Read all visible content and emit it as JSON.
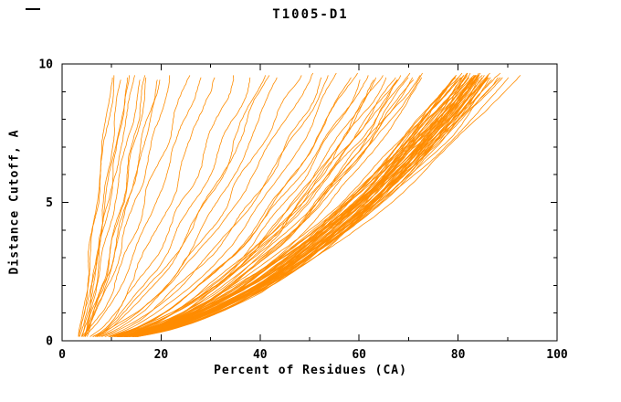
{
  "chart_data": {
    "type": "line",
    "title": "T1005-D1",
    "xlabel": "Percent of Residues (CA)",
    "ylabel": "Distance Cutoff, A",
    "xlim": [
      0,
      100
    ],
    "ylim": [
      0,
      10
    ],
    "xticks": {
      "major": [
        0,
        20,
        40,
        60,
        80,
        100
      ],
      "labels": [
        "0",
        "20",
        "40",
        "60",
        "80",
        "100"
      ],
      "minor_step": 10
    },
    "yticks": {
      "major": [
        0,
        5,
        10
      ],
      "labels": [
        "0",
        "5",
        "10"
      ],
      "minor_step": 1
    },
    "grid": false,
    "legend": "none",
    "background": "#ffffff",
    "axis_color": "#000000",
    "line_color": "#ff8c00",
    "curve_ymax": 9.7,
    "curves_format": [
      "x_start_percent",
      "x_at_top_percent",
      "shape_exponent",
      "wobble",
      "seed"
    ],
    "curves": [
      [
        3.1,
        88,
        0.52,
        1.2,
        11
      ],
      [
        3.4,
        85,
        0.5,
        1,
        12
      ],
      [
        2.9,
        83,
        0.55,
        1.4,
        13
      ],
      [
        3.6,
        86,
        0.48,
        0.9,
        14
      ],
      [
        4,
        84,
        0.53,
        1.1,
        15
      ],
      [
        3.2,
        82,
        0.57,
        1.3,
        16
      ],
      [
        3.8,
        87,
        0.51,
        1,
        17
      ],
      [
        3,
        81,
        0.49,
        1.2,
        18
      ],
      [
        3.5,
        89,
        0.54,
        1.5,
        19
      ],
      [
        4.2,
        80,
        0.52,
        1.1,
        20
      ],
      [
        3.3,
        84,
        0.46,
        1,
        21
      ],
      [
        3.7,
        82,
        0.58,
        1.2,
        22
      ],
      [
        2.8,
        86,
        0.5,
        1.3,
        23
      ],
      [
        3.9,
        79,
        0.53,
        1,
        24
      ],
      [
        3.1,
        85,
        0.47,
        1.1,
        25
      ],
      [
        3.6,
        83,
        0.55,
        1.4,
        26
      ],
      [
        3.2,
        87,
        0.52,
        0.9,
        27
      ],
      [
        4.1,
        81,
        0.49,
        1.2,
        28
      ],
      [
        3.4,
        84,
        0.56,
        1,
        29
      ],
      [
        2.9,
        82,
        0.51,
        1.3,
        30
      ],
      [
        3.8,
        88,
        0.53,
        1.1,
        31
      ],
      [
        3,
        80,
        0.48,
        1,
        32
      ],
      [
        3.5,
        86,
        0.54,
        1.2,
        33
      ],
      [
        3.3,
        83,
        0.5,
        1.4,
        34
      ],
      [
        4,
        85,
        0.57,
        1,
        35
      ],
      [
        3.1,
        78,
        0.52,
        1.1,
        36
      ],
      [
        3.7,
        84,
        0.49,
        1.3,
        37
      ],
      [
        3.2,
        90,
        0.55,
        1,
        38
      ],
      [
        3.9,
        82,
        0.51,
        1.2,
        39
      ],
      [
        2.8,
        85,
        0.53,
        1.1,
        40
      ],
      [
        3.6,
        79,
        0.47,
        1,
        41
      ],
      [
        3.3,
        87,
        0.56,
        1.3,
        42
      ],
      [
        3,
        83,
        0.52,
        1,
        43
      ],
      [
        4.2,
        86,
        0.5,
        1.2,
        44
      ],
      [
        3.4,
        81,
        0.54,
        1.1,
        45
      ],
      [
        3.8,
        84,
        0.48,
        1,
        46
      ],
      [
        3.1,
        88,
        0.53,
        1.4,
        47
      ],
      [
        3.5,
        80,
        0.51,
        1,
        48
      ],
      [
        2.9,
        84,
        0.55,
        1.2,
        49
      ],
      [
        3.7,
        86,
        0.49,
        1.1,
        50
      ],
      [
        3.2,
        82,
        0.52,
        1,
        51
      ],
      [
        4,
        87,
        0.54,
        1.3,
        52
      ],
      [
        3.3,
        83,
        0.5,
        1,
        53
      ],
      [
        3.6,
        85,
        0.56,
        1.2,
        54
      ],
      [
        3,
        81,
        0.52,
        1.1,
        55
      ],
      [
        3.9,
        84,
        0.47,
        1,
        56
      ],
      [
        3.4,
        89,
        0.53,
        1.2,
        57
      ],
      [
        3.1,
        82,
        0.51,
        1.4,
        58
      ],
      [
        3.8,
        85,
        0.55,
        1,
        59
      ],
      [
        2.9,
        83,
        0.49,
        1.1,
        60
      ],
      [
        3.5,
        86,
        0.52,
        1,
        61
      ],
      [
        3.2,
        80,
        0.54,
        1.2,
        62
      ],
      [
        4.1,
        84,
        0.5,
        1,
        63
      ],
      [
        3.3,
        87,
        0.53,
        1.3,
        64
      ],
      [
        3.7,
        81,
        0.48,
        1,
        65
      ],
      [
        3,
        85,
        0.55,
        1.1,
        66
      ],
      [
        3.6,
        83,
        0.51,
        1.2,
        67
      ],
      [
        3.2,
        92,
        0.53,
        1,
        68
      ],
      [
        3.9,
        84,
        0.49,
        1.1,
        69
      ],
      [
        3.4,
        86,
        0.56,
        1,
        70
      ],
      [
        3.1,
        71,
        0.5,
        1.2,
        71
      ],
      [
        3.5,
        68,
        0.54,
        1,
        72
      ],
      [
        3,
        65,
        0.48,
        1.3,
        73
      ],
      [
        3.8,
        72,
        0.52,
        1,
        74
      ],
      [
        3.2,
        62,
        0.55,
        1.1,
        75
      ],
      [
        3.6,
        70,
        0.5,
        1,
        76
      ],
      [
        2.9,
        66,
        0.53,
        1.2,
        77
      ],
      [
        3.4,
        73,
        0.49,
        1,
        78
      ],
      [
        3.1,
        60,
        0.52,
        1.1,
        79
      ],
      [
        3.7,
        69,
        0.55,
        1.3,
        80
      ],
      [
        3.3,
        64,
        0.47,
        1,
        81
      ],
      [
        3,
        71,
        0.53,
        1.1,
        82
      ],
      [
        3.5,
        58,
        0.51,
        1,
        83
      ],
      [
        3.2,
        67,
        0.54,
        1.2,
        84
      ],
      [
        3.9,
        63,
        0.5,
        1,
        85
      ],
      [
        3.4,
        70,
        0.48,
        1.1,
        86
      ],
      [
        3.1,
        56,
        0.52,
        1,
        87
      ],
      [
        3.6,
        68,
        0.55,
        1.2,
        88
      ],
      [
        3.3,
        61,
        0.49,
        1,
        89
      ],
      [
        3,
        72,
        0.53,
        1.1,
        90
      ],
      [
        3.4,
        52,
        0.55,
        1.3,
        91
      ],
      [
        3.1,
        47,
        0.6,
        1.2,
        92
      ],
      [
        3.7,
        40,
        0.58,
        1.1,
        93
      ],
      [
        3.2,
        35,
        0.62,
        1.4,
        94
      ],
      [
        3.5,
        44,
        0.56,
        1,
        95
      ],
      [
        3,
        50,
        0.59,
        1.2,
        96
      ],
      [
        3.8,
        38,
        0.63,
        1.1,
        97
      ],
      [
        3.3,
        31,
        0.6,
        1.3,
        98
      ],
      [
        3.6,
        54,
        0.57,
        1,
        99
      ],
      [
        3.1,
        42,
        0.61,
        1.2,
        100
      ],
      [
        3.5,
        11,
        0.95,
        0.8,
        101
      ],
      [
        4,
        13,
        0.9,
        0.7,
        102
      ],
      [
        3.2,
        15,
        0.85,
        0.9,
        103
      ],
      [
        4.5,
        12,
        1,
        0.6,
        104
      ],
      [
        3.8,
        17,
        0.8,
        0.8,
        105
      ],
      [
        3.4,
        14,
        0.92,
        0.7,
        106
      ],
      [
        4.2,
        19,
        0.78,
        0.9,
        107
      ],
      [
        3.6,
        22,
        0.75,
        1,
        108
      ],
      [
        3.9,
        16,
        0.88,
        0.7,
        109
      ],
      [
        3.3,
        25,
        0.72,
        1.1,
        110
      ],
      [
        4.1,
        20,
        0.82,
        0.8,
        111
      ],
      [
        3.7,
        28,
        0.7,
        1,
        112
      ],
      [
        3.5,
        10,
        1.05,
        0.6,
        113
      ],
      [
        4.3,
        18,
        0.84,
        0.8,
        114
      ]
    ]
  }
}
